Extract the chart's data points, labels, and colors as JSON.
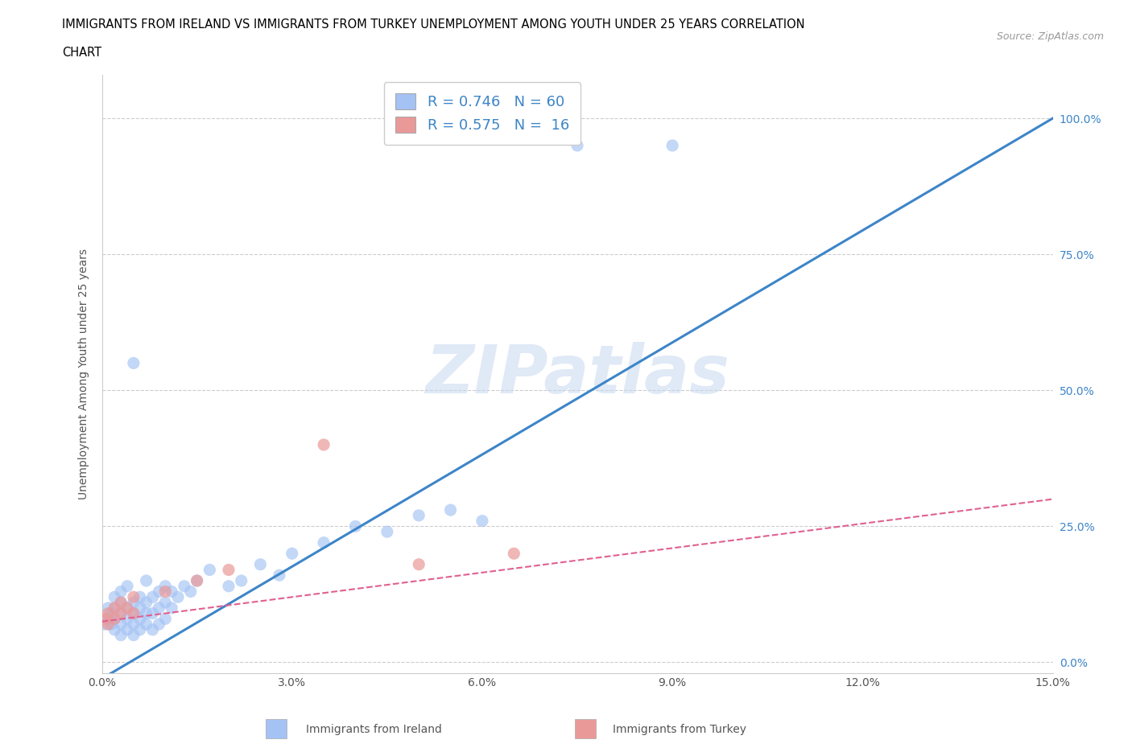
{
  "title_line1": "IMMIGRANTS FROM IRELAND VS IMMIGRANTS FROM TURKEY UNEMPLOYMENT AMONG YOUTH UNDER 25 YEARS CORRELATION",
  "title_line2": "CHART",
  "source_text": "Source: ZipAtlas.com",
  "ylabel": "Unemployment Among Youth under 25 years",
  "watermark": "ZIPatlas",
  "xlim": [
    0.0,
    0.15
  ],
  "ylim": [
    -0.02,
    1.08
  ],
  "yticks": [
    0.0,
    0.25,
    0.5,
    0.75,
    1.0
  ],
  "ytick_labels": [
    "0.0%",
    "25.0%",
    "50.0%",
    "75.0%",
    "100.0%"
  ],
  "xticks": [
    0.0,
    0.03,
    0.06,
    0.09,
    0.12,
    0.15
  ],
  "xtick_labels": [
    "0.0%",
    "3.0%",
    "6.0%",
    "9.0%",
    "12.0%",
    "15.0%"
  ],
  "ireland_R": 0.746,
  "ireland_N": 60,
  "turkey_R": 0.575,
  "turkey_N": 16,
  "ireland_color": "#a4c2f4",
  "turkey_color": "#ea9999",
  "ireland_line_color": "#3d85c8",
  "turkey_line_color": "#e06090",
  "legend_label_ireland": "Immigrants from Ireland",
  "legend_label_turkey": "Immigrants from Turkey",
  "background_color": "#ffffff",
  "grid_color": "#cccccc",
  "ireland_line_x0": 0.0,
  "ireland_line_y0": -0.03,
  "ireland_line_x1": 0.15,
  "ireland_line_y1": 1.0,
  "turkey_line_x0": 0.0,
  "turkey_line_y0": 0.075,
  "turkey_line_x1": 0.15,
  "turkey_line_y1": 0.3,
  "ireland_x": [
    0.0005,
    0.001,
    0.001,
    0.0015,
    0.0015,
    0.002,
    0.002,
    0.002,
    0.002,
    0.003,
    0.003,
    0.003,
    0.003,
    0.003,
    0.004,
    0.004,
    0.004,
    0.004,
    0.005,
    0.005,
    0.005,
    0.005,
    0.005,
    0.006,
    0.006,
    0.006,
    0.006,
    0.007,
    0.007,
    0.007,
    0.007,
    0.008,
    0.008,
    0.008,
    0.009,
    0.009,
    0.009,
    0.01,
    0.01,
    0.01,
    0.011,
    0.011,
    0.012,
    0.013,
    0.014,
    0.015,
    0.017,
    0.02,
    0.022,
    0.025,
    0.028,
    0.03,
    0.035,
    0.04,
    0.045,
    0.05,
    0.055,
    0.06,
    0.075,
    0.09
  ],
  "ireland_y": [
    0.07,
    0.08,
    0.1,
    0.07,
    0.09,
    0.06,
    0.08,
    0.1,
    0.12,
    0.05,
    0.07,
    0.09,
    0.11,
    0.13,
    0.06,
    0.08,
    0.1,
    0.14,
    0.05,
    0.07,
    0.09,
    0.11,
    0.55,
    0.06,
    0.08,
    0.1,
    0.12,
    0.07,
    0.09,
    0.11,
    0.15,
    0.06,
    0.09,
    0.12,
    0.07,
    0.1,
    0.13,
    0.08,
    0.11,
    0.14,
    0.1,
    0.13,
    0.12,
    0.14,
    0.13,
    0.15,
    0.17,
    0.14,
    0.15,
    0.18,
    0.16,
    0.2,
    0.22,
    0.25,
    0.24,
    0.27,
    0.28,
    0.26,
    0.95,
    0.95
  ],
  "turkey_x": [
    0.0005,
    0.001,
    0.001,
    0.002,
    0.002,
    0.003,
    0.003,
    0.004,
    0.005,
    0.005,
    0.01,
    0.015,
    0.02,
    0.035,
    0.05,
    0.065
  ],
  "turkey_y": [
    0.08,
    0.07,
    0.09,
    0.08,
    0.1,
    0.09,
    0.11,
    0.1,
    0.09,
    0.12,
    0.13,
    0.15,
    0.17,
    0.4,
    0.18,
    0.2
  ]
}
